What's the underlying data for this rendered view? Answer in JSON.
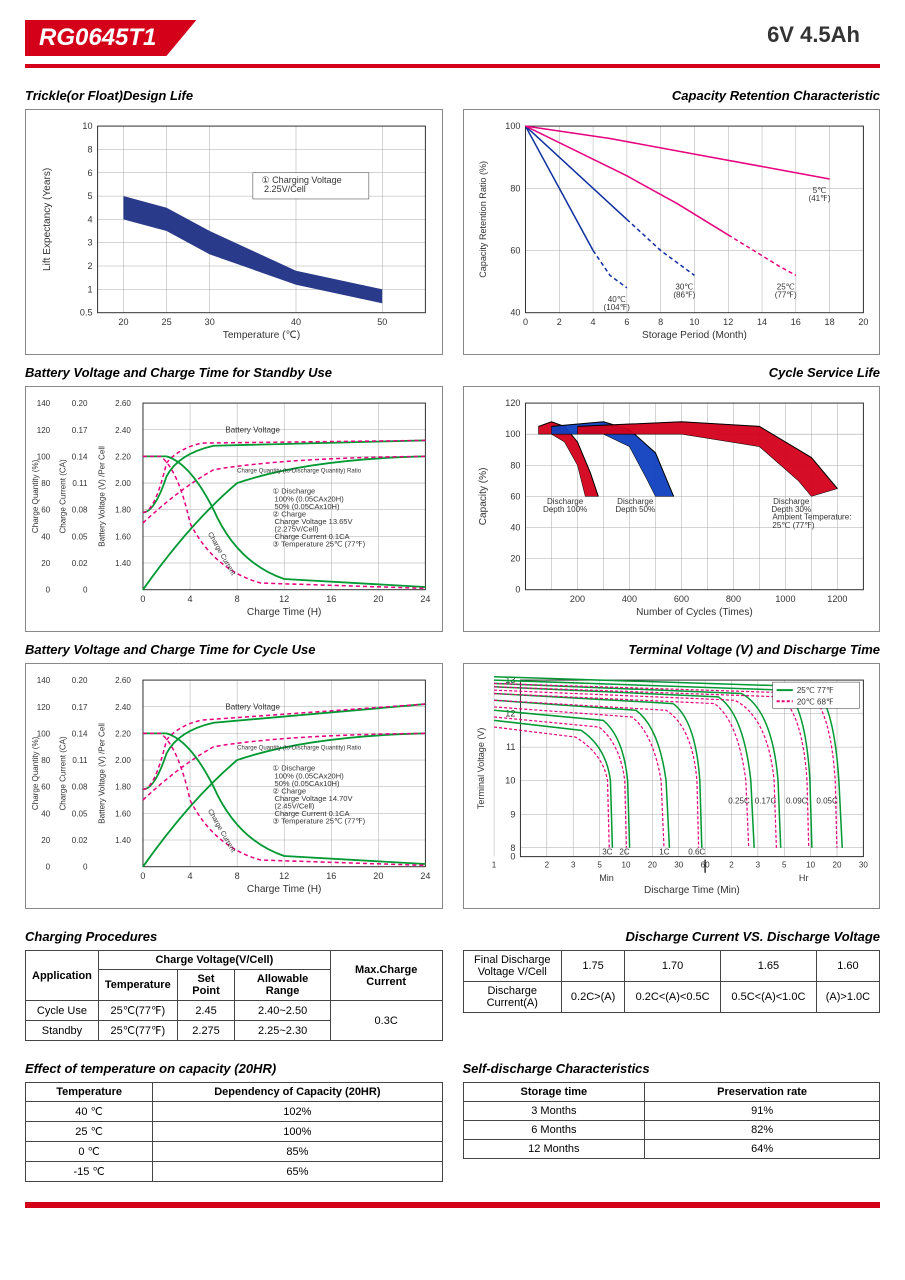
{
  "header": {
    "model": "RG0645T1",
    "spec": "6V  4.5Ah"
  },
  "charts": {
    "trickle": {
      "title": "Trickle(or Float)Design Life",
      "xlabel": "Temperature (℃)",
      "ylabel": "Lift  Expectancy (Years)",
      "xticks": [
        20,
        25,
        30,
        40,
        50
      ],
      "yticks": [
        0.5,
        1,
        2,
        3,
        4,
        5,
        6,
        8,
        10
      ],
      "annotation": "① Charging Voltage\n   2.25V/Cell",
      "band_color": "#2a3a8a",
      "upper": [
        [
          20,
          5
        ],
        [
          25,
          4.5
        ],
        [
          30,
          3.5
        ],
        [
          40,
          1.8
        ],
        [
          50,
          1
        ]
      ],
      "lower": [
        [
          20,
          4
        ],
        [
          25,
          3.5
        ],
        [
          30,
          2.5
        ],
        [
          40,
          1.2
        ],
        [
          50,
          0.7
        ]
      ]
    },
    "retention": {
      "title": "Capacity  Retention  Characteristic",
      "xlabel": "Storage Period (Month)",
      "ylabel": "Capacity Retention Ratio (%)",
      "xticks": [
        0,
        2,
        4,
        6,
        8,
        10,
        12,
        14,
        16,
        18,
        20
      ],
      "yticks": [
        40,
        60,
        80,
        100
      ],
      "curves": [
        {
          "label": "40℃\n(104℉)",
          "color": "#1030a0",
          "points": [
            [
              0,
              100
            ],
            [
              1,
              90
            ],
            [
              2,
              80
            ],
            [
              3,
              70
            ],
            [
              4,
              60
            ],
            [
              5,
              52
            ],
            [
              6,
              48
            ]
          ],
          "dashed_from": 4
        },
        {
          "label": "30℃\n(86℉)",
          "color": "#1030a0",
          "points": [
            [
              0,
              100
            ],
            [
              2,
              90
            ],
            [
              4,
              80
            ],
            [
              6,
              70
            ],
            [
              8,
              60
            ],
            [
              10,
              52
            ]
          ],
          "dashed_from": 6
        },
        {
          "label": "25℃\n(77℉)",
          "color": "#e6007e",
          "points": [
            [
              0,
              100
            ],
            [
              3,
              92
            ],
            [
              6,
              84
            ],
            [
              9,
              75
            ],
            [
              12,
              65
            ],
            [
              15,
              55
            ],
            [
              16,
              52
            ]
          ],
          "dashed_from": 12
        },
        {
          "label": "5℃\n(41℉)",
          "color": "#e6007e",
          "points": [
            [
              0,
              100
            ],
            [
              5,
              96
            ],
            [
              10,
              91
            ],
            [
              15,
              86
            ],
            [
              18,
              83
            ]
          ],
          "dashed_from": null
        }
      ]
    },
    "standby": {
      "title": "Battery Voltage and Charge Time for Standby Use",
      "xlabel": "Charge Time (H)",
      "y1": "Charge Quantity (%)",
      "y2": "Charge Current (CA)",
      "y3": "Battery Voltage (V) /Per Cell",
      "y1ticks": [
        0,
        20,
        40,
        60,
        80,
        100,
        120,
        140
      ],
      "y2ticks": [
        "0",
        "0.02",
        "0.05",
        "0.08",
        "0.11",
        "0.14",
        "0.17",
        "0.20"
      ],
      "y3ticks": [
        "",
        "1.40",
        "1.60",
        "1.80",
        "2.00",
        "2.20",
        "2.40",
        "2.60"
      ],
      "xticks": [
        0,
        4,
        8,
        12,
        16,
        20,
        24
      ],
      "green": "#009933",
      "pink": "#e6007e",
      "annotation": "① Discharge\n     100% (0.05CAx20H)\n     50% (0.05CAx10H)\n② Charge\n     Charge Voltage 13.65V\n     (2.275V/Cell)\n     Charge Current 0.1CA\n③ Temperature 25℃ (77℉)"
    },
    "cycle_life": {
      "title": "Cycle Service Life",
      "xlabel": "Number of Cycles (Times)",
      "ylabel": "Capacity (%)",
      "xticks": [
        200,
        400,
        600,
        800,
        1000,
        1200
      ],
      "yticks": [
        0,
        20,
        40,
        60,
        80,
        100,
        120
      ],
      "regions": [
        {
          "label": "Discharge\nDepth 100%",
          "color": "#d4001a",
          "upper": [
            [
              50,
              105
            ],
            [
              100,
              108
            ],
            [
              150,
              105
            ],
            [
              200,
              95
            ],
            [
              250,
              75
            ],
            [
              280,
              60
            ]
          ],
          "lower": [
            [
              50,
              100
            ],
            [
              100,
              100
            ],
            [
              150,
              95
            ],
            [
              200,
              80
            ],
            [
              230,
              60
            ]
          ]
        },
        {
          "label": "Discharge\nDepth 50%",
          "color": "#1040c0",
          "upper": [
            [
              100,
              105
            ],
            [
              300,
              108
            ],
            [
              400,
              103
            ],
            [
              500,
              88
            ],
            [
              570,
              60
            ]
          ],
          "lower": [
            [
              100,
              100
            ],
            [
              300,
              100
            ],
            [
              400,
              92
            ],
            [
              470,
              70
            ],
            [
              500,
              60
            ]
          ]
        },
        {
          "label": "Discharge\nDepth 30%",
          "color": "#d4001a",
          "upper": [
            [
              200,
              105
            ],
            [
              600,
              108
            ],
            [
              900,
              105
            ],
            [
              1100,
              85
            ],
            [
              1200,
              65
            ]
          ],
          "lower": [
            [
              200,
              100
            ],
            [
              600,
              100
            ],
            [
              900,
              92
            ],
            [
              1050,
              70
            ],
            [
              1100,
              60
            ]
          ]
        }
      ],
      "annotation": "Ambient Temperature:\n25℃ (77℉)"
    },
    "cycle_charge": {
      "title": "Battery Voltage and Charge Time for Cycle Use",
      "annotation": "① Discharge\n     100% (0.05CAx20H)\n     50% (0.05CAx10H)\n② Charge\n     Charge Voltage 14.70V\n     (2.45V/Cell)\n     Charge Current 0.1CA\n③ Temperature 25℃ (77℉)"
    },
    "terminal": {
      "title": "Terminal Voltage (V) and Discharge Time",
      "xlabel": "Discharge Time (Min)",
      "ylabel": "Terminal Voltage (V)",
      "yticks": [
        0,
        8,
        9,
        10,
        11,
        12,
        13
      ],
      "legend": [
        {
          "label": "25℃ 77℉",
          "color": "#009933"
        },
        {
          "label": "20℃ 68℉",
          "color": "#e6007e"
        }
      ],
      "rate_labels": [
        "3C",
        "2C",
        "1C",
        "0.6C",
        "0.25C",
        "0.17C",
        "0.09C",
        "0.05C"
      ],
      "x_sections": {
        "min": [
          1,
          2,
          3,
          5,
          10,
          20,
          30,
          60
        ],
        "hr": [
          2,
          3,
          5,
          10,
          20,
          30
        ]
      }
    }
  },
  "tables": {
    "charging": {
      "title": "Charging Procedures",
      "headers": {
        "app": "Application",
        "cv": "Charge Voltage(V/Cell)",
        "temp": "Temperature",
        "sp": "Set Point",
        "ar": "Allowable Range",
        "max": "Max.Charge Current"
      },
      "rows": [
        {
          "app": "Cycle Use",
          "temp": "25℃(77℉)",
          "sp": "2.45",
          "ar": "2.40~2.50"
        },
        {
          "app": "Standby",
          "temp": "25℃(77℉)",
          "sp": "2.275",
          "ar": "2.25~2.30"
        }
      ],
      "max": "0.3C"
    },
    "discharge_v": {
      "title": "Discharge Current VS. Discharge Voltage",
      "h1": "Final Discharge\nVoltage V/Cell",
      "h2": "Discharge\nCurrent(A)",
      "cols": [
        "1.75",
        "1.70",
        "1.65",
        "1.60"
      ],
      "vals": [
        "0.2C>(A)",
        "0.2C<(A)<0.5C",
        "0.5C<(A)<1.0C",
        "(A)>1.0C"
      ]
    },
    "temp_cap": {
      "title": "Effect of temperature on capacity (20HR)",
      "headers": [
        "Temperature",
        "Dependency of Capacity (20HR)"
      ],
      "rows": [
        [
          "40 ℃",
          "102%"
        ],
        [
          "25 ℃",
          "100%"
        ],
        [
          "0 ℃",
          "85%"
        ],
        [
          "-15 ℃",
          "65%"
        ]
      ]
    },
    "self_discharge": {
      "title": "Self-discharge Characteristics",
      "headers": [
        "Storage time",
        "Preservation rate"
      ],
      "rows": [
        [
          "3 Months",
          "91%"
        ],
        [
          "6 Months",
          "82%"
        ],
        [
          "12 Months",
          "64%"
        ]
      ]
    }
  }
}
